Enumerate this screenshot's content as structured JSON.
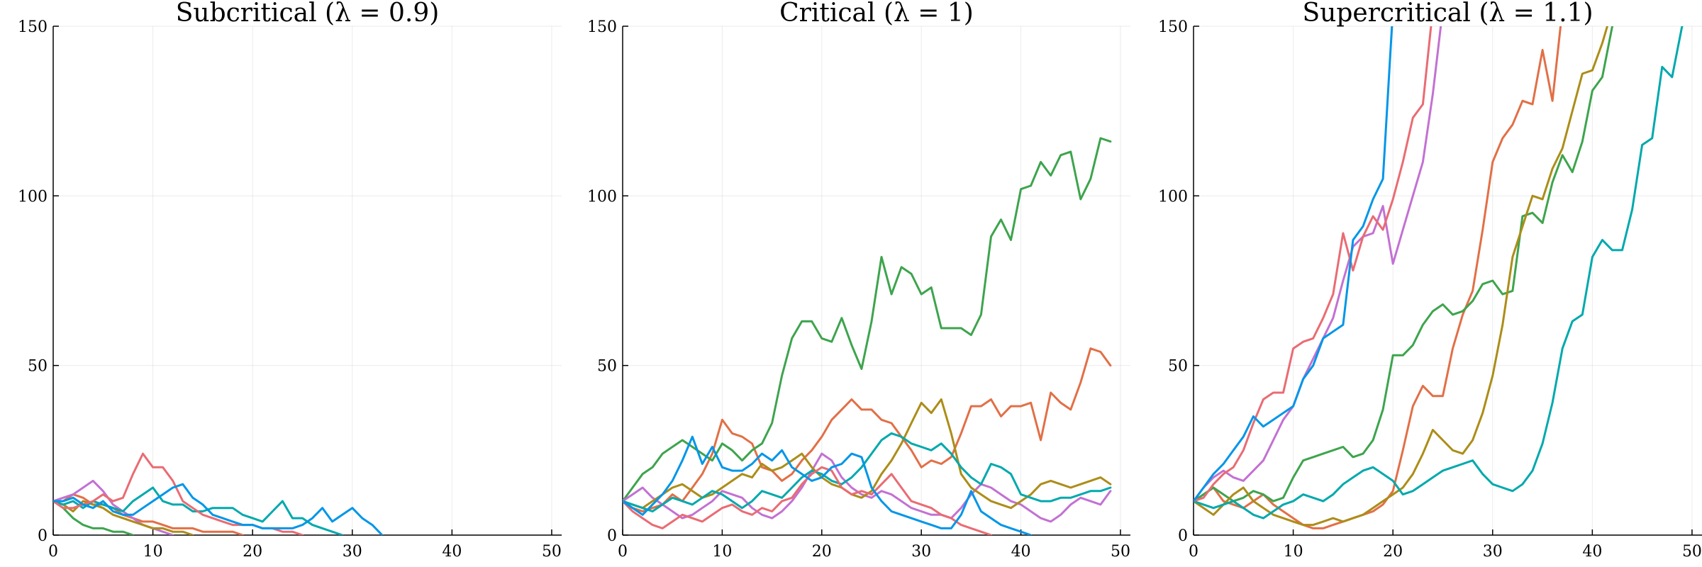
{
  "chart_data": [
    {
      "type": "line",
      "title": "Subcritical (λ = 0.9)",
      "xlabel": "",
      "ylabel": "",
      "xlim": [
        0,
        51
      ],
      "ylim": [
        0,
        150
      ],
      "xticks": [
        0,
        10,
        20,
        30,
        40,
        50
      ],
      "yticks": [
        0,
        50,
        100,
        150
      ],
      "grid": true,
      "series": [
        {
          "color": "#e26f46",
          "values": [
            10,
            10,
            12,
            11,
            9,
            9,
            8,
            6,
            5,
            4,
            4,
            3,
            2,
            2,
            2,
            1,
            1,
            1,
            1,
            0
          ]
        },
        {
          "color": "#3da44d",
          "values": [
            10,
            8,
            5,
            3,
            2,
            2,
            1,
            1,
            0
          ]
        },
        {
          "color": "#c271d2",
          "values": [
            10,
            11,
            12,
            14,
            16,
            13,
            9,
            7,
            5,
            3,
            2,
            1,
            0
          ]
        },
        {
          "color": "#ac8d18",
          "values": [
            10,
            9,
            7,
            10,
            9,
            8,
            6,
            5,
            4,
            3,
            2,
            2,
            1,
            1,
            0
          ]
        },
        {
          "color": "#00a9ad",
          "values": [
            10,
            9,
            10,
            8,
            10,
            9,
            8,
            7,
            10,
            12,
            14,
            10,
            9,
            9,
            7,
            7,
            8,
            8,
            8,
            6,
            5,
            4,
            7,
            10,
            5,
            5,
            3,
            2,
            1,
            0
          ]
        },
        {
          "color": "#ea6b73",
          "values": [
            10,
            8,
            8,
            9,
            10,
            12,
            10,
            11,
            18,
            24,
            20,
            20,
            16,
            10,
            8,
            6,
            5,
            4,
            3,
            3,
            3,
            2,
            2,
            1,
            1,
            0
          ]
        },
        {
          "color": "#0096e8",
          "values": [
            10,
            10,
            11,
            9,
            8,
            10,
            7,
            6,
            6,
            8,
            10,
            12,
            14,
            15,
            11,
            9,
            6,
            5,
            4,
            3,
            3,
            2,
            2,
            2,
            2,
            3,
            5,
            8,
            4,
            6,
            8,
            5,
            3,
            0
          ]
        }
      ]
    },
    {
      "type": "line",
      "title": "Critical (λ = 1)",
      "xlabel": "",
      "ylabel": "",
      "xlim": [
        0,
        51
      ],
      "ylim": [
        0,
        150
      ],
      "xticks": [
        0,
        10,
        20,
        30,
        40,
        50
      ],
      "yticks": [
        0,
        50,
        100,
        150
      ],
      "grid": true,
      "series": [
        {
          "color": "#e26f46",
          "values": [
            10,
            8,
            7,
            8,
            9,
            12,
            10,
            14,
            18,
            24,
            34,
            30,
            29,
            27,
            20,
            19,
            16,
            18,
            22,
            25,
            29,
            34,
            37,
            40,
            37,
            37,
            34,
            33,
            29,
            25,
            20,
            22,
            21,
            23,
            30,
            38,
            38,
            40,
            35,
            38,
            38,
            39,
            28,
            42,
            39,
            37,
            45,
            55,
            54,
            50
          ]
        },
        {
          "color": "#3da44d",
          "values": [
            10,
            14,
            18,
            20,
            24,
            26,
            28,
            26,
            24,
            22,
            27,
            25,
            22,
            25,
            27,
            33,
            47,
            58,
            63,
            63,
            58,
            57,
            64,
            56,
            49,
            63,
            82,
            71,
            79,
            77,
            71,
            73,
            61,
            61,
            61,
            59,
            65,
            88,
            93,
            87,
            102,
            103,
            110,
            106,
            112,
            113,
            99,
            105,
            117,
            116
          ]
        },
        {
          "color": "#c271d2",
          "values": [
            10,
            12,
            14,
            11,
            9,
            7,
            5,
            6,
            8,
            10,
            13,
            12,
            11,
            8,
            6,
            5,
            7,
            10,
            14,
            19,
            24,
            22,
            17,
            14,
            12,
            11,
            13,
            12,
            10,
            8,
            7,
            6,
            6,
            5,
            8,
            12,
            15,
            14,
            12,
            10,
            9,
            7,
            5,
            4,
            6,
            9,
            11,
            10,
            9,
            13
          ]
        },
        {
          "color": "#ac8d18",
          "values": [
            10,
            9,
            8,
            10,
            12,
            14,
            15,
            13,
            11,
            12,
            14,
            16,
            18,
            17,
            21,
            19,
            20,
            22,
            24,
            20,
            17,
            15,
            14,
            12,
            11,
            13,
            18,
            22,
            27,
            33,
            39,
            36,
            40,
            30,
            18,
            14,
            12,
            10,
            9,
            8,
            10,
            12,
            15,
            16,
            15,
            14,
            15,
            16,
            17,
            15
          ]
        },
        {
          "color": "#00a9ad",
          "values": [
            10,
            9,
            8,
            7,
            9,
            11,
            10,
            9,
            11,
            13,
            12,
            10,
            8,
            10,
            13,
            12,
            11,
            14,
            17,
            19,
            18,
            16,
            15,
            17,
            20,
            24,
            28,
            30,
            29,
            27,
            26,
            25,
            27,
            24,
            20,
            17,
            15,
            21,
            20,
            18,
            12,
            11,
            10,
            10,
            11,
            11,
            12,
            13,
            13,
            14
          ]
        },
        {
          "color": "#ea6b73",
          "values": [
            10,
            7,
            5,
            3,
            2,
            4,
            6,
            5,
            4,
            6,
            8,
            9,
            7,
            6,
            8,
            7,
            10,
            11,
            15,
            18,
            20,
            19,
            14,
            12,
            13,
            12,
            15,
            18,
            14,
            10,
            9,
            8,
            6,
            5,
            3,
            2,
            1,
            0
          ]
        },
        {
          "color": "#0096e8",
          "values": [
            10,
            8,
            6,
            9,
            12,
            16,
            22,
            29,
            21,
            26,
            20,
            19,
            19,
            21,
            24,
            22,
            25,
            20,
            18,
            16,
            17,
            20,
            21,
            24,
            23,
            14,
            10,
            7,
            6,
            5,
            4,
            3,
            2,
            2,
            6,
            13,
            7,
            5,
            3,
            2,
            1,
            0
          ]
        }
      ]
    },
    {
      "type": "line",
      "title": "Supercritical (λ = 1.1)",
      "xlabel": "",
      "ylabel": "",
      "xlim": [
        0,
        51
      ],
      "ylim": [
        0,
        150
      ],
      "xticks": [
        0,
        10,
        20,
        30,
        40,
        50
      ],
      "yticks": [
        0,
        50,
        100,
        150
      ],
      "grid": true,
      "series": [
        {
          "color": "#e26f46",
          "values": [
            10,
            12,
            14,
            10,
            9,
            8,
            10,
            12,
            9,
            7,
            5,
            3,
            2,
            2,
            3,
            4,
            5,
            6,
            7,
            9,
            13,
            25,
            38,
            44,
            41,
            41,
            55,
            65,
            72,
            90,
            110,
            117,
            121,
            128,
            127,
            143,
            128,
            155
          ]
        },
        {
          "color": "#3da44d",
          "values": [
            10,
            12,
            14,
            12,
            10,
            11,
            13,
            12,
            10,
            11,
            17,
            22,
            23,
            24,
            25,
            26,
            23,
            24,
            28,
            37,
            53,
            53,
            56,
            62,
            66,
            68,
            65,
            66,
            69,
            74,
            75,
            71,
            72,
            94,
            95,
            92,
            104,
            112,
            107,
            116,
            131,
            135,
            150
          ]
        },
        {
          "color": "#c271d2",
          "values": [
            10,
            14,
            17,
            19,
            17,
            16,
            19,
            22,
            28,
            34,
            38,
            46,
            52,
            58,
            64,
            75,
            85,
            88,
            89,
            97,
            80,
            90,
            100,
            110,
            130,
            155
          ]
        },
        {
          "color": "#ac8d18",
          "values": [
            10,
            8,
            6,
            9,
            12,
            14,
            10,
            8,
            6,
            5,
            4,
            3,
            3,
            4,
            5,
            4,
            5,
            6,
            8,
            10,
            12,
            14,
            18,
            24,
            31,
            28,
            25,
            24,
            28,
            36,
            47,
            62,
            82,
            91,
            100,
            99,
            108,
            114,
            125,
            136,
            137,
            145,
            155
          ]
        },
        {
          "color": "#00a9ad",
          "values": [
            10,
            9,
            8,
            9,
            10,
            8,
            6,
            5,
            7,
            9,
            10,
            12,
            11,
            10,
            12,
            15,
            17,
            19,
            20,
            18,
            16,
            12,
            13,
            15,
            17,
            19,
            20,
            21,
            22,
            18,
            15,
            14,
            13,
            15,
            19,
            27,
            39,
            55,
            63,
            65,
            82,
            87,
            84,
            84,
            96,
            115,
            117,
            138,
            135,
            150,
            153
          ]
        },
        {
          "color": "#ea6b73",
          "values": [
            10,
            11,
            15,
            18,
            20,
            25,
            33,
            40,
            42,
            42,
            55,
            57,
            58,
            64,
            71,
            89,
            78,
            88,
            94,
            90,
            99,
            110,
            123,
            127,
            155
          ]
        },
        {
          "color": "#0096e8",
          "values": [
            10,
            14,
            18,
            21,
            25,
            29,
            35,
            32,
            34,
            36,
            38,
            46,
            50,
            58,
            60,
            62,
            87,
            91,
            99,
            105,
            155
          ]
        }
      ]
    }
  ]
}
